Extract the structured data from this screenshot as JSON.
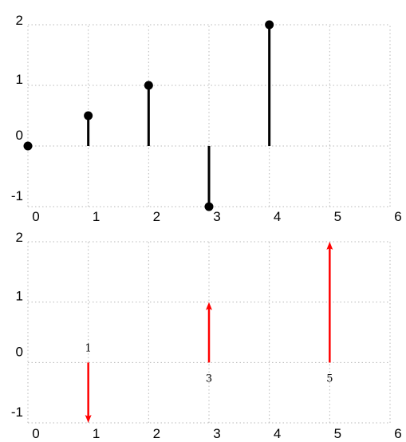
{
  "chart_data": [
    {
      "type": "stem",
      "x": [
        0,
        1,
        2,
        3,
        4
      ],
      "values": [
        0,
        0.5,
        1,
        -1,
        2
      ],
      "xlim": [
        0,
        6
      ],
      "ylim": [
        -1,
        2
      ],
      "xticks": [
        "0",
        "1",
        "2",
        "3",
        "4",
        "5",
        "6"
      ],
      "yticks": [
        "-1",
        "0",
        "1",
        "2"
      ],
      "grid": true,
      "color": "#000000"
    },
    {
      "type": "impulse",
      "x": [
        1,
        3,
        5
      ],
      "values": [
        -1,
        1,
        2
      ],
      "labels": [
        "1",
        "3",
        "5"
      ],
      "xlim": [
        0,
        6
      ],
      "ylim": [
        -1,
        2
      ],
      "xticks": [
        "0",
        "1",
        "2",
        "3",
        "4",
        "5",
        "6"
      ],
      "yticks": [
        "-1",
        "0",
        "1",
        "2"
      ],
      "grid": true,
      "color": "#ff0000"
    }
  ]
}
